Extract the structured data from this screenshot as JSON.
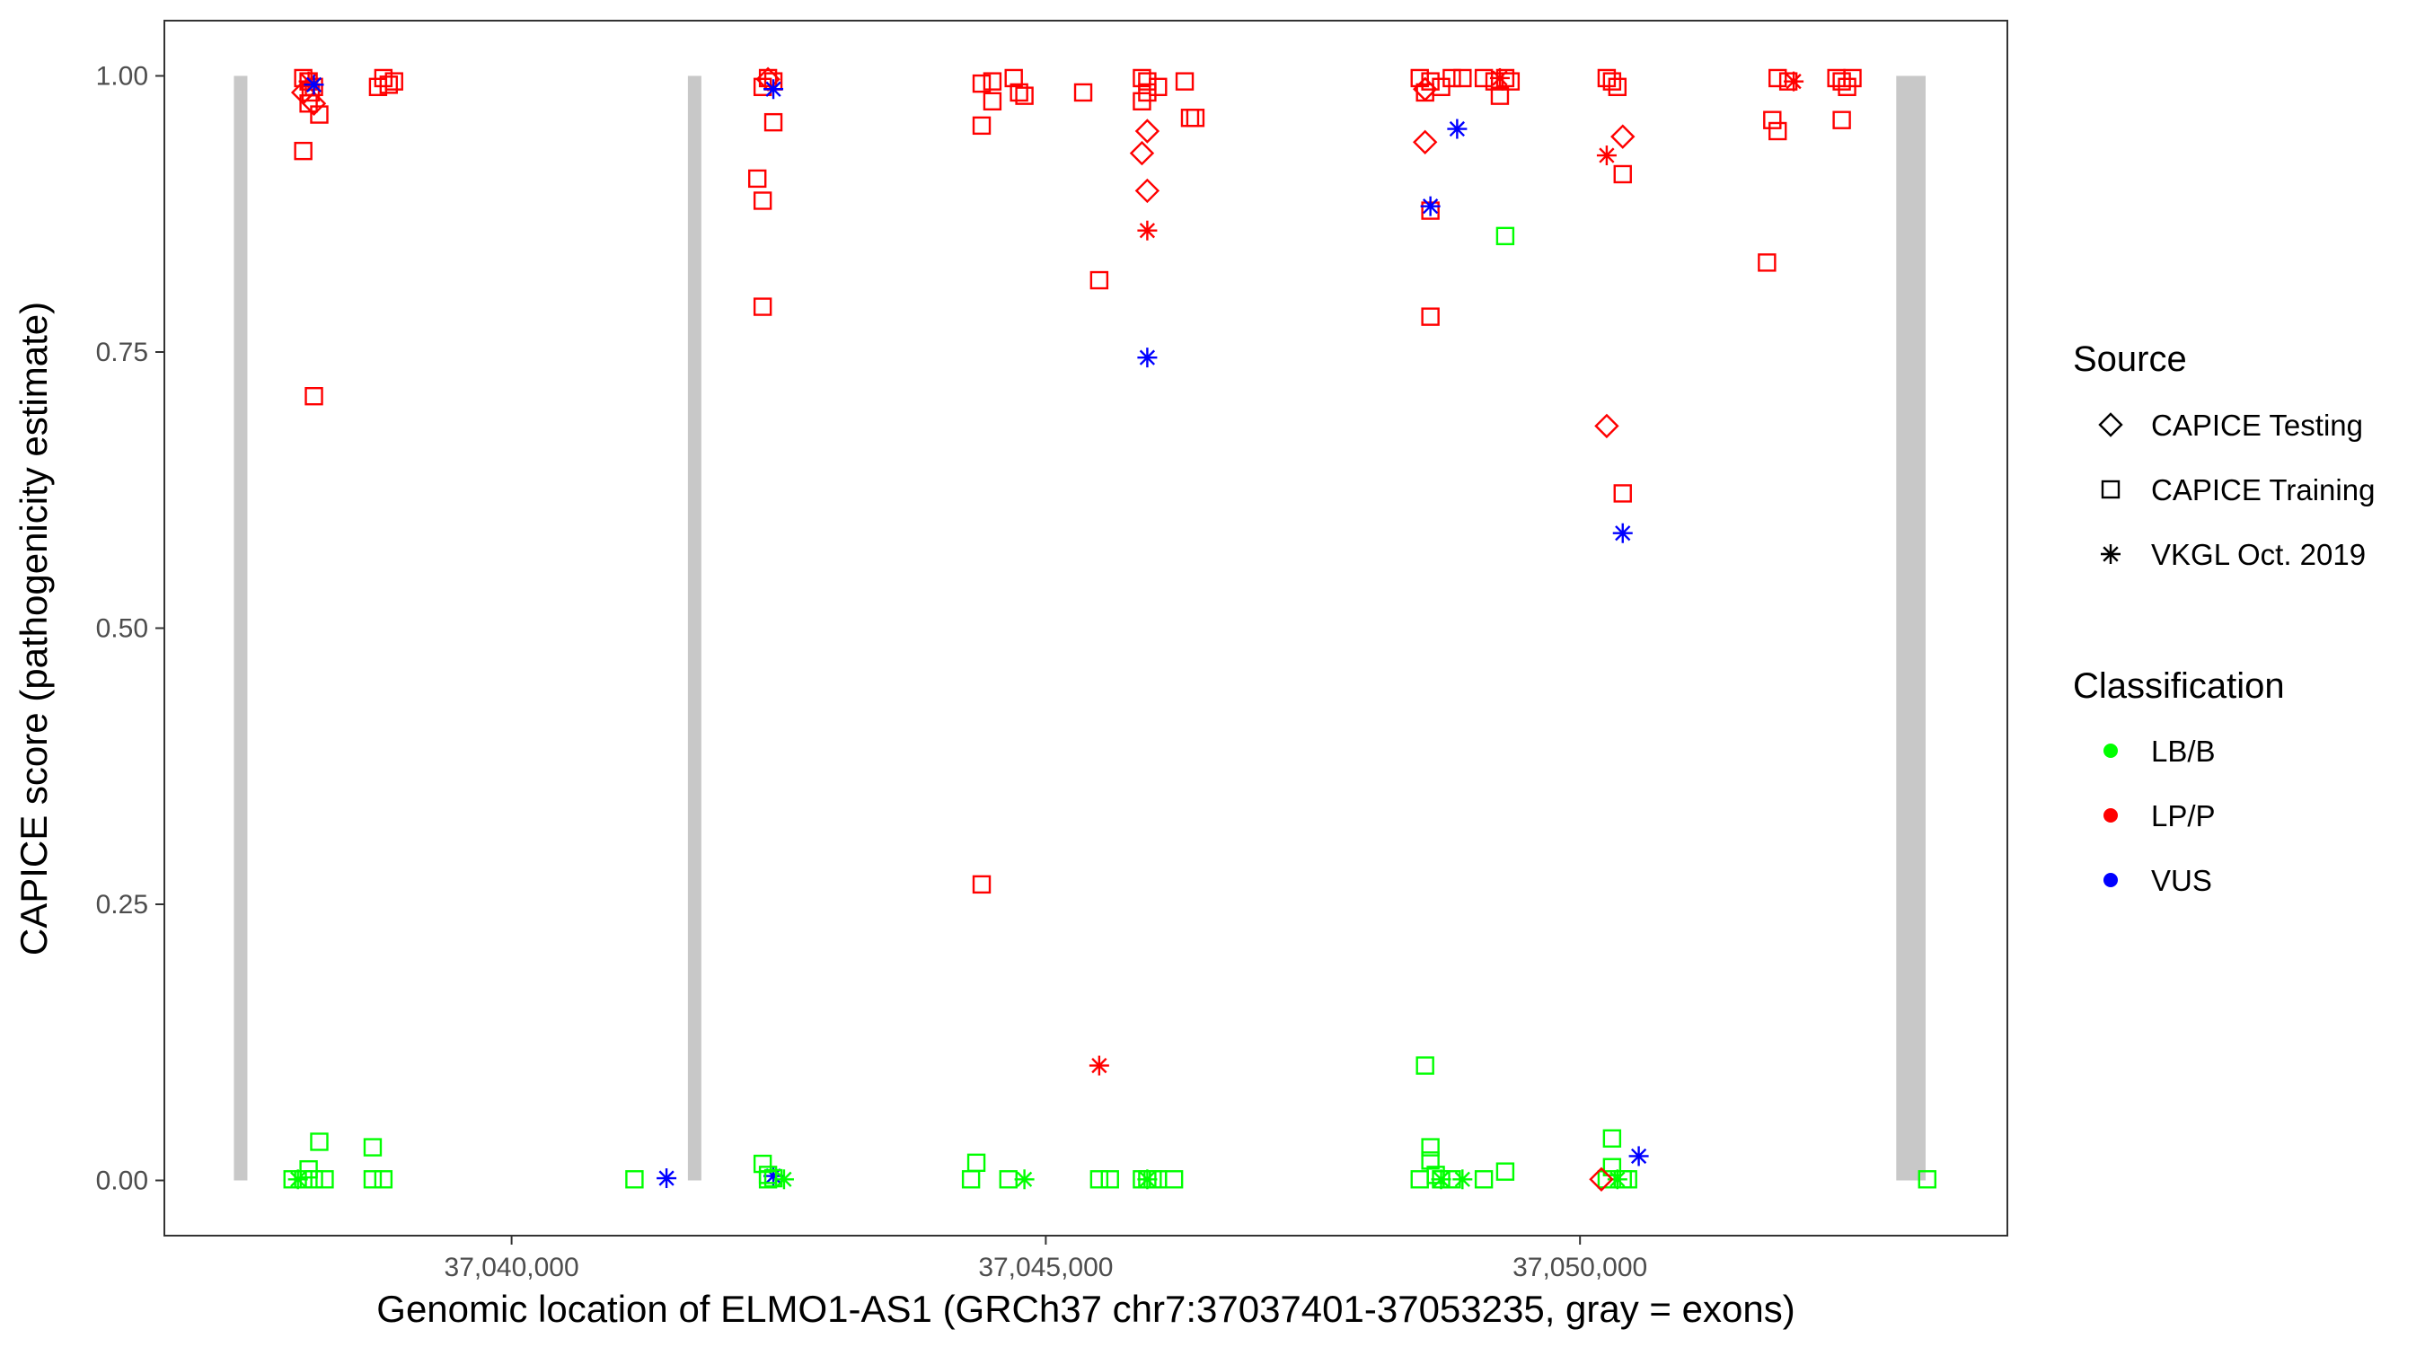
{
  "chart_data": {
    "type": "scatter",
    "title": "",
    "xlabel": "Genomic location of ELMO1-AS1 (GRCh37 chr7:37037401-37053235, gray = exons)",
    "ylabel": "CAPICE score (pathogenicity estimate)",
    "xlim": [
      37036750,
      37054000
    ],
    "ylim": [
      -0.05,
      1.05
    ],
    "x_ticks": [
      37040000,
      37045000,
      37050000
    ],
    "x_tick_labels": [
      "37,040,000",
      "37,045,000",
      "37,050,000"
    ],
    "y_ticks": [
      0,
      0.25,
      0.5,
      0.75,
      1
    ],
    "y_tick_labels": [
      "0.00",
      "0.25",
      "0.50",
      "0.75",
      "1.00"
    ],
    "grid": false,
    "legend_position": "right",
    "exons": [
      {
        "start": 37037401,
        "end": 37037520,
        "y": [
          0,
          1
        ]
      },
      {
        "start": 37041650,
        "end": 37041770,
        "y": [
          0,
          1
        ]
      },
      {
        "start": 37052960,
        "end": 37053235,
        "y": [
          0,
          1
        ]
      }
    ],
    "legend": {
      "source_title": "Source",
      "sources": [
        {
          "name": "CAPICE Testing",
          "shape": "diamond"
        },
        {
          "name": "CAPICE Training",
          "shape": "square"
        },
        {
          "name": "VKGL Oct. 2019",
          "shape": "asterisk"
        }
      ],
      "classification_title": "Classification",
      "classes": [
        {
          "name": "LB/B",
          "color": "#00ff00"
        },
        {
          "name": "LP/P",
          "color": "#ff0000"
        },
        {
          "name": "VUS",
          "color": "#0000ff"
        }
      ]
    },
    "series": [
      {
        "name": "CAPICE Training",
        "classification": "LP/P",
        "shape": "square",
        "color": "#ff0000",
        "points": [
          [
            37038050,
            0.998
          ],
          [
            37038100,
            0.995
          ],
          [
            37038150,
            0.99
          ],
          [
            37038120,
            0.985
          ],
          [
            37038100,
            0.975
          ],
          [
            37038200,
            0.965
          ],
          [
            37038050,
            0.932
          ],
          [
            37038150,
            0.71
          ],
          [
            37038800,
            0.998
          ],
          [
            37038850,
            0.992
          ],
          [
            37038750,
            0.99
          ],
          [
            37038900,
            0.995
          ],
          [
            37042400,
            0.998
          ],
          [
            37042450,
            0.995
          ],
          [
            37042350,
            0.99
          ],
          [
            37042300,
            0.907
          ],
          [
            37042350,
            0.887
          ],
          [
            37042450,
            0.958
          ],
          [
            37042350,
            0.791
          ],
          [
            37044400,
            0.993
          ],
          [
            37044500,
            0.995
          ],
          [
            37044700,
            0.998
          ],
          [
            37044800,
            0.982
          ],
          [
            37044750,
            0.985
          ],
          [
            37044500,
            0.977
          ],
          [
            37044400,
            0.955
          ],
          [
            37044400,
            0.268
          ],
          [
            37045350,
            0.985
          ],
          [
            37045500,
            0.815
          ],
          [
            37045900,
            0.998
          ],
          [
            37045950,
            0.995
          ],
          [
            37046050,
            0.99
          ],
          [
            37045950,
            0.985
          ],
          [
            37045900,
            0.977
          ],
          [
            37046300,
            0.995
          ],
          [
            37046350,
            0.962
          ],
          [
            37046400,
            0.962
          ],
          [
            37048500,
            0.998
          ],
          [
            37048600,
            0.995
          ],
          [
            37048700,
            0.99
          ],
          [
            37048800,
            0.998
          ],
          [
            37048900,
            0.998
          ],
          [
            37048550,
            0.985
          ],
          [
            37048600,
            0.878
          ],
          [
            37048600,
            0.782
          ],
          [
            37049100,
            0.998
          ],
          [
            37049200,
            0.995
          ],
          [
            37049300,
            0.998
          ],
          [
            37049250,
            0.982
          ],
          [
            37049350,
            0.995
          ],
          [
            37050250,
            0.998
          ],
          [
            37050300,
            0.995
          ],
          [
            37050350,
            0.99
          ],
          [
            37050400,
            0.911
          ],
          [
            37050400,
            0.622
          ],
          [
            37051850,
            0.998
          ],
          [
            37051950,
            0.995
          ],
          [
            37051800,
            0.96
          ],
          [
            37051850,
            0.95
          ],
          [
            37051750,
            0.831
          ],
          [
            37052400,
            0.998
          ],
          [
            37052450,
            0.995
          ],
          [
            37052500,
            0.99
          ],
          [
            37052550,
            0.998
          ],
          [
            37052450,
            0.96
          ]
        ]
      },
      {
        "name": "CAPICE Testing",
        "classification": "LP/P",
        "shape": "diamond",
        "color": "#ff0000",
        "points": [
          [
            37038050,
            0.985
          ],
          [
            37038150,
            0.975
          ],
          [
            37042400,
            0.997
          ],
          [
            37045950,
            0.95
          ],
          [
            37045900,
            0.93
          ],
          [
            37045950,
            0.896
          ],
          [
            37048550,
            0.94
          ],
          [
            37048550,
            0.988
          ],
          [
            37050400,
            0.945
          ],
          [
            37050250,
            0.683
          ]
        ]
      },
      {
        "name": "VKGL Oct. 2019",
        "classification": "LP/P",
        "shape": "asterisk",
        "color": "#ff0000",
        "points": [
          [
            37038100,
            0.995
          ],
          [
            37045950,
            0.86
          ],
          [
            37045500,
            0.104
          ],
          [
            37050250,
            0.928
          ],
          [
            37052000,
            0.995
          ],
          [
            37049250,
            0.998
          ]
        ]
      },
      {
        "name": "VKGL Oct. 2019",
        "classification": "VUS",
        "shape": "asterisk",
        "color": "#0000ff",
        "points": [
          [
            37038150,
            0.992
          ],
          [
            37042450,
            0.988
          ],
          [
            37041450,
            0.002
          ],
          [
            37042450,
            0.004
          ],
          [
            37045950,
            0.745
          ],
          [
            37048600,
            0.882
          ],
          [
            37048850,
            0.952
          ],
          [
            37050400,
            0.586
          ],
          [
            37050550,
            0.022
          ]
        ]
      },
      {
        "name": "CAPICE Training",
        "classification": "LB/B",
        "shape": "square",
        "color": "#00ff00",
        "points": [
          [
            37037950,
            0.001
          ],
          [
            37038050,
            0.001
          ],
          [
            37038100,
            0.01
          ],
          [
            37038150,
            0.001
          ],
          [
            37038200,
            0.035
          ],
          [
            37038250,
            0.001
          ],
          [
            37038700,
            0.03
          ],
          [
            37038700,
            0.001
          ],
          [
            37038800,
            0.001
          ],
          [
            37041150,
            0.001
          ],
          [
            37042350,
            0.015
          ],
          [
            37042400,
            0.005
          ],
          [
            37042400,
            0.001
          ],
          [
            37042450,
            0.002
          ],
          [
            37044350,
            0.016
          ],
          [
            37044300,
            0.001
          ],
          [
            37044650,
            0.001
          ],
          [
            37045500,
            0.001
          ],
          [
            37045600,
            0.001
          ],
          [
            37045900,
            0.001
          ],
          [
            37045950,
            0.001
          ],
          [
            37046000,
            0.001
          ],
          [
            37046050,
            0.001
          ],
          [
            37046200,
            0.001
          ],
          [
            37048500,
            0.001
          ],
          [
            37048550,
            0.104
          ],
          [
            37048600,
            0.03
          ],
          [
            37048600,
            0.018
          ],
          [
            37048650,
            0.005
          ],
          [
            37048700,
            0.001
          ],
          [
            37048800,
            0.001
          ],
          [
            37049300,
            0.855
          ],
          [
            37049100,
            0.001
          ],
          [
            37049300,
            0.008
          ],
          [
            37050300,
            0.038
          ],
          [
            37050300,
            0.012
          ],
          [
            37050250,
            0.001
          ],
          [
            37050400,
            0.001
          ],
          [
            37050450,
            0.001
          ],
          [
            37053250,
            0.001
          ]
        ]
      },
      {
        "name": "VKGL Oct. 2019",
        "classification": "LB/B",
        "shape": "asterisk",
        "color": "#00ff00",
        "points": [
          [
            37038000,
            0.001
          ],
          [
            37042550,
            0.001
          ],
          [
            37044800,
            0.001
          ],
          [
            37045950,
            0.001
          ],
          [
            37048700,
            0.001
          ],
          [
            37048900,
            0.001
          ],
          [
            37050350,
            0.001
          ]
        ]
      },
      {
        "name": "CAPICE Testing",
        "classification": "LP/P",
        "shape": "diamond",
        "color": "#ff0000",
        "points": [
          [
            37050200,
            0.001
          ]
        ]
      }
    ]
  }
}
